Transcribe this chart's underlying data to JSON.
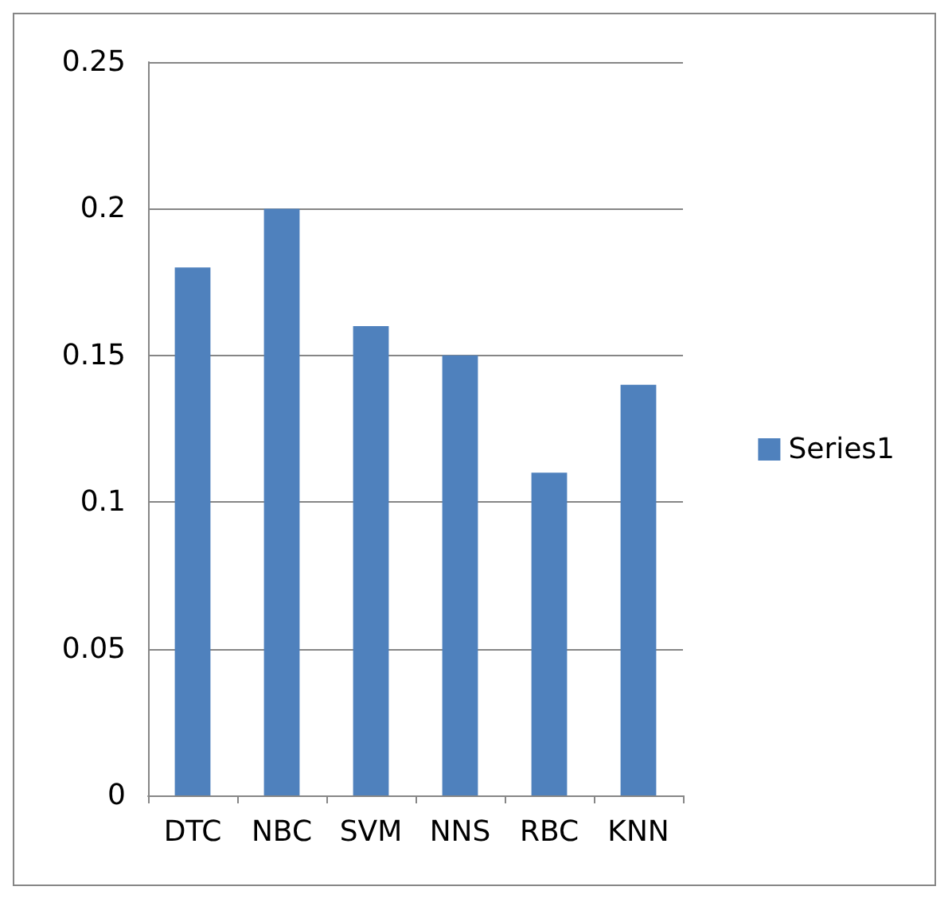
{
  "chart_data": {
    "type": "bar",
    "categories": [
      "DTC",
      "NBC",
      "SVM",
      "NNS",
      "RBC",
      "KNN"
    ],
    "series": [
      {
        "name": "Series1",
        "color": "#4f81bd",
        "values": [
          0.18,
          0.2,
          0.16,
          0.15,
          0.11,
          0.14
        ]
      }
    ],
    "ylim": [
      0,
      0.25
    ],
    "yticks": [
      0,
      0.05,
      0.1,
      0.15,
      0.2,
      0.25
    ],
    "grid": "y",
    "legend": "right"
  }
}
